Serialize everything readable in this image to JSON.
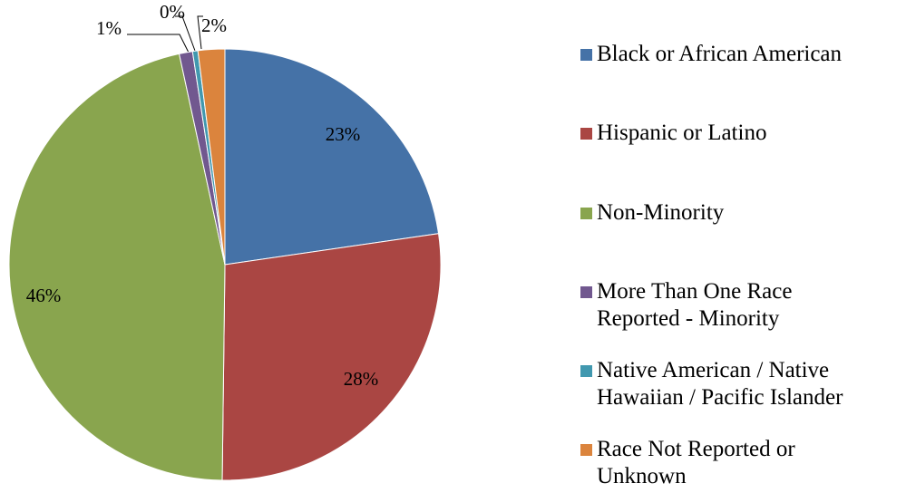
{
  "chart_data": {
    "type": "pie",
    "categories": [
      "Black or African American",
      "Hispanic or Latino",
      "Non-Minority",
      "More Than One Race Reported - Minority",
      "Native American / Native Hawaiian / Pacific Islander",
      "Race Not Reported or Unknown"
    ],
    "values": [
      22.7,
      27.5,
      46.4,
      1.0,
      0.4,
      2.0
    ],
    "value_labels": [
      "23%",
      "28%",
      "46%",
      "1%",
      "0%",
      "2%"
    ],
    "colors": [
      "#4572a7",
      "#aa4643",
      "#89a54e",
      "#71588f",
      "#4198af",
      "#db843d"
    ],
    "legend": "right"
  }
}
